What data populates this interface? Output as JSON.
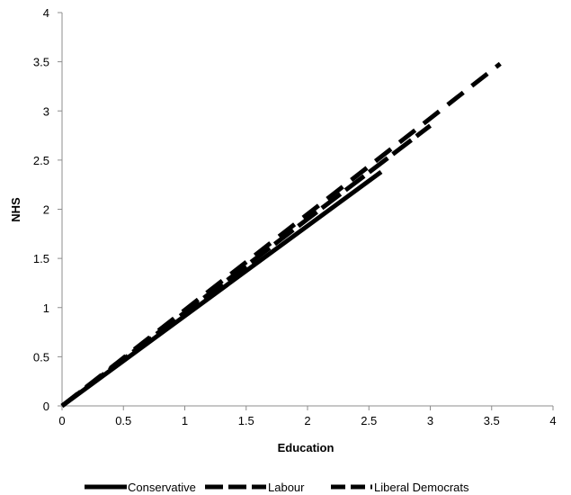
{
  "chart_data": {
    "type": "line",
    "title": "",
    "xlabel": "Education",
    "ylabel": "NHS",
    "xlim": [
      0,
      4
    ],
    "ylim": [
      0,
      4
    ],
    "xticks": [
      "0",
      "0.5",
      "1",
      "1.5",
      "2",
      "2.5",
      "3",
      "3.5",
      "4"
    ],
    "yticks": [
      "0",
      "0.5",
      "1",
      "1.5",
      "2",
      "2.5",
      "3",
      "3.5",
      "4"
    ],
    "grid": false,
    "legend_position": "bottom",
    "series": [
      {
        "name": "Conservative",
        "style": "solid",
        "color": "#000000",
        "x": [
          0,
          2.6
        ],
        "y": [
          0,
          2.38
        ]
      },
      {
        "name": "Labour",
        "style": "dashed",
        "color": "#000000",
        "x": [
          0,
          3.0
        ],
        "y": [
          0,
          2.85
        ]
      },
      {
        "name": "Liberal Democrats",
        "style": "dashed",
        "color": "#000000",
        "x": [
          0,
          3.57
        ],
        "y": [
          0,
          3.48
        ]
      }
    ]
  }
}
